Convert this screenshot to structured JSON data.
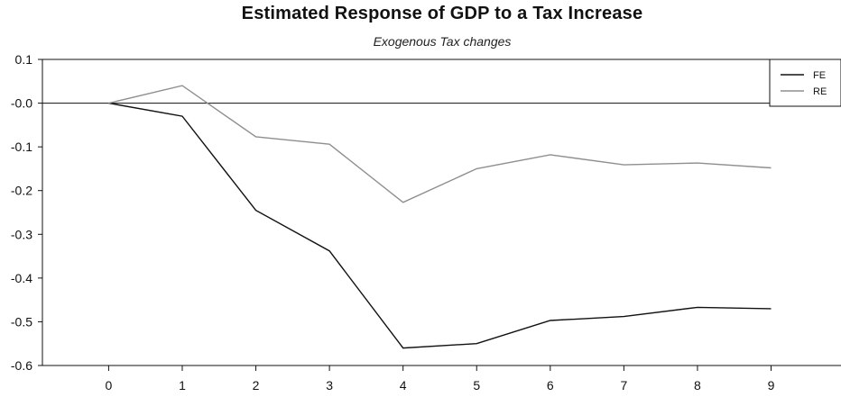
{
  "chart_data": {
    "type": "line",
    "title": "Estimated Response of GDP to a Tax Increase",
    "subtitle": "Exogenous Tax changes",
    "x": [
      0,
      1,
      2,
      3,
      4,
      5,
      6,
      7,
      8,
      9
    ],
    "x_tick_labels": [
      "0",
      "1",
      "2",
      "3",
      "4",
      "5",
      "6",
      "7",
      "8",
      "9"
    ],
    "xlim": [
      -0.9,
      9.95
    ],
    "ylim": [
      -0.6,
      0.1
    ],
    "y_ticks": [
      0.1,
      0.0,
      -0.1,
      -0.2,
      -0.3,
      -0.4,
      -0.5,
      -0.6
    ],
    "y_tick_labels": [
      "0.1",
      "-0.0",
      "-0.1",
      "-0.2",
      "-0.3",
      "-0.4",
      "-0.5",
      "-0.6"
    ],
    "zero_line": true,
    "grid": false,
    "legend_position": "top-right",
    "series": [
      {
        "name": "FE",
        "color": "#111111",
        "values": [
          0.0,
          -0.03,
          -0.245,
          -0.338,
          -0.56,
          -0.55,
          -0.497,
          -0.488,
          -0.467,
          -0.47
        ]
      },
      {
        "name": "RE",
        "color": "#8f8f8f",
        "values": [
          0.0,
          0.04,
          -0.077,
          -0.094,
          -0.227,
          -0.15,
          -0.118,
          -0.141,
          -0.137,
          -0.148
        ]
      }
    ],
    "xlabel": "",
    "ylabel": ""
  }
}
